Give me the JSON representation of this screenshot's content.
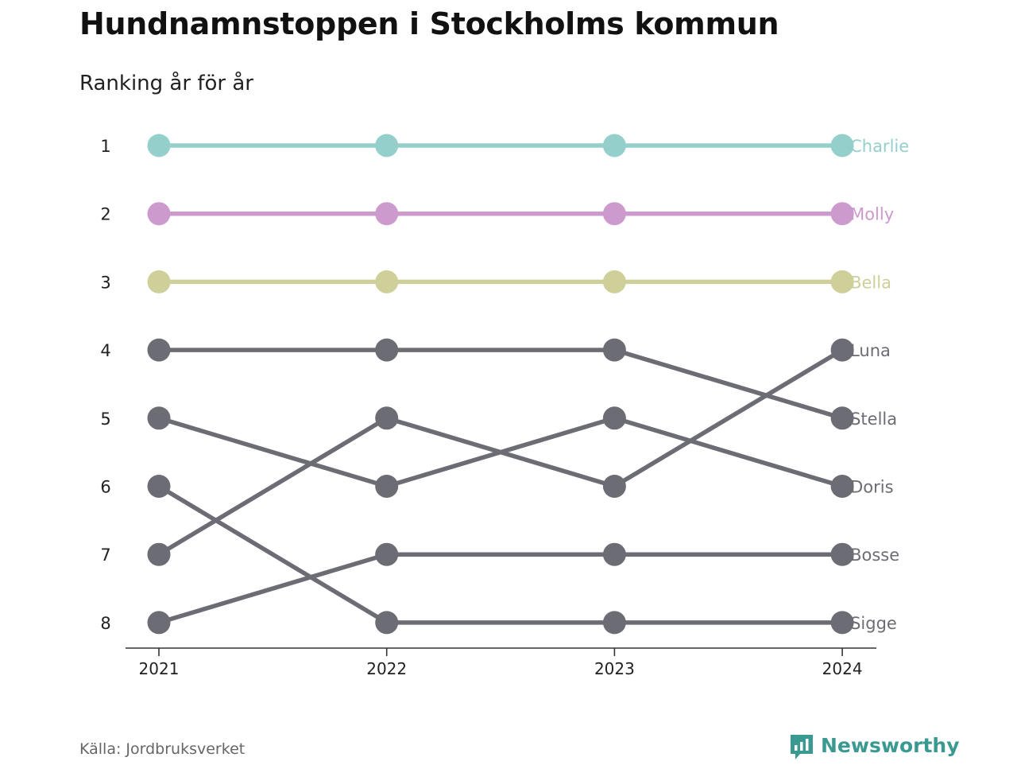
{
  "header": {
    "title": "Hundnamnstoppen i Stockholms kommun",
    "subtitle": "Ranking år för år"
  },
  "footer": {
    "source": "Källa: Jordbruksverket",
    "brand": "Newsworthy",
    "brand_icon": "bar-chart-speech-bubble-icon"
  },
  "colors": {
    "background": "#ffffff",
    "highlight_teal": "#94cfcb",
    "highlight_pink": "#cd9acd",
    "highlight_olive": "#cfcf9a",
    "muted_gray": "#6c6c74",
    "axis": "#333333",
    "brand": "#3a9990"
  },
  "chart_data": {
    "type": "line",
    "subtype": "bump",
    "x": [
      "2021",
      "2022",
      "2023",
      "2024"
    ],
    "y_ticks": [
      "1",
      "2",
      "3",
      "4",
      "5",
      "6",
      "7",
      "8"
    ],
    "y_reversed": true,
    "ylim": [
      1,
      8
    ],
    "grid": false,
    "legend": "direct labels at right end of lines",
    "series": [
      {
        "name": "Charlie",
        "values": [
          1,
          1,
          1,
          1
        ],
        "color": "#94cfcb"
      },
      {
        "name": "Molly",
        "values": [
          2,
          2,
          2,
          2
        ],
        "color": "#cd9acd"
      },
      {
        "name": "Bella",
        "values": [
          3,
          3,
          3,
          3
        ],
        "color": "#cfcf9a"
      },
      {
        "name": "Luna",
        "values": [
          7,
          5,
          6,
          4
        ],
        "color": "#6c6c74"
      },
      {
        "name": "Stella",
        "values": [
          4,
          4,
          4,
          5
        ],
        "color": "#6c6c74"
      },
      {
        "name": "Doris",
        "values": [
          5,
          6,
          5,
          6
        ],
        "color": "#6c6c74"
      },
      {
        "name": "Bosse",
        "values": [
          8,
          7,
          7,
          7
        ],
        "color": "#6c6c74"
      },
      {
        "name": "Sigge",
        "values": [
          6,
          8,
          8,
          8
        ],
        "color": "#6c6c74"
      }
    ]
  }
}
